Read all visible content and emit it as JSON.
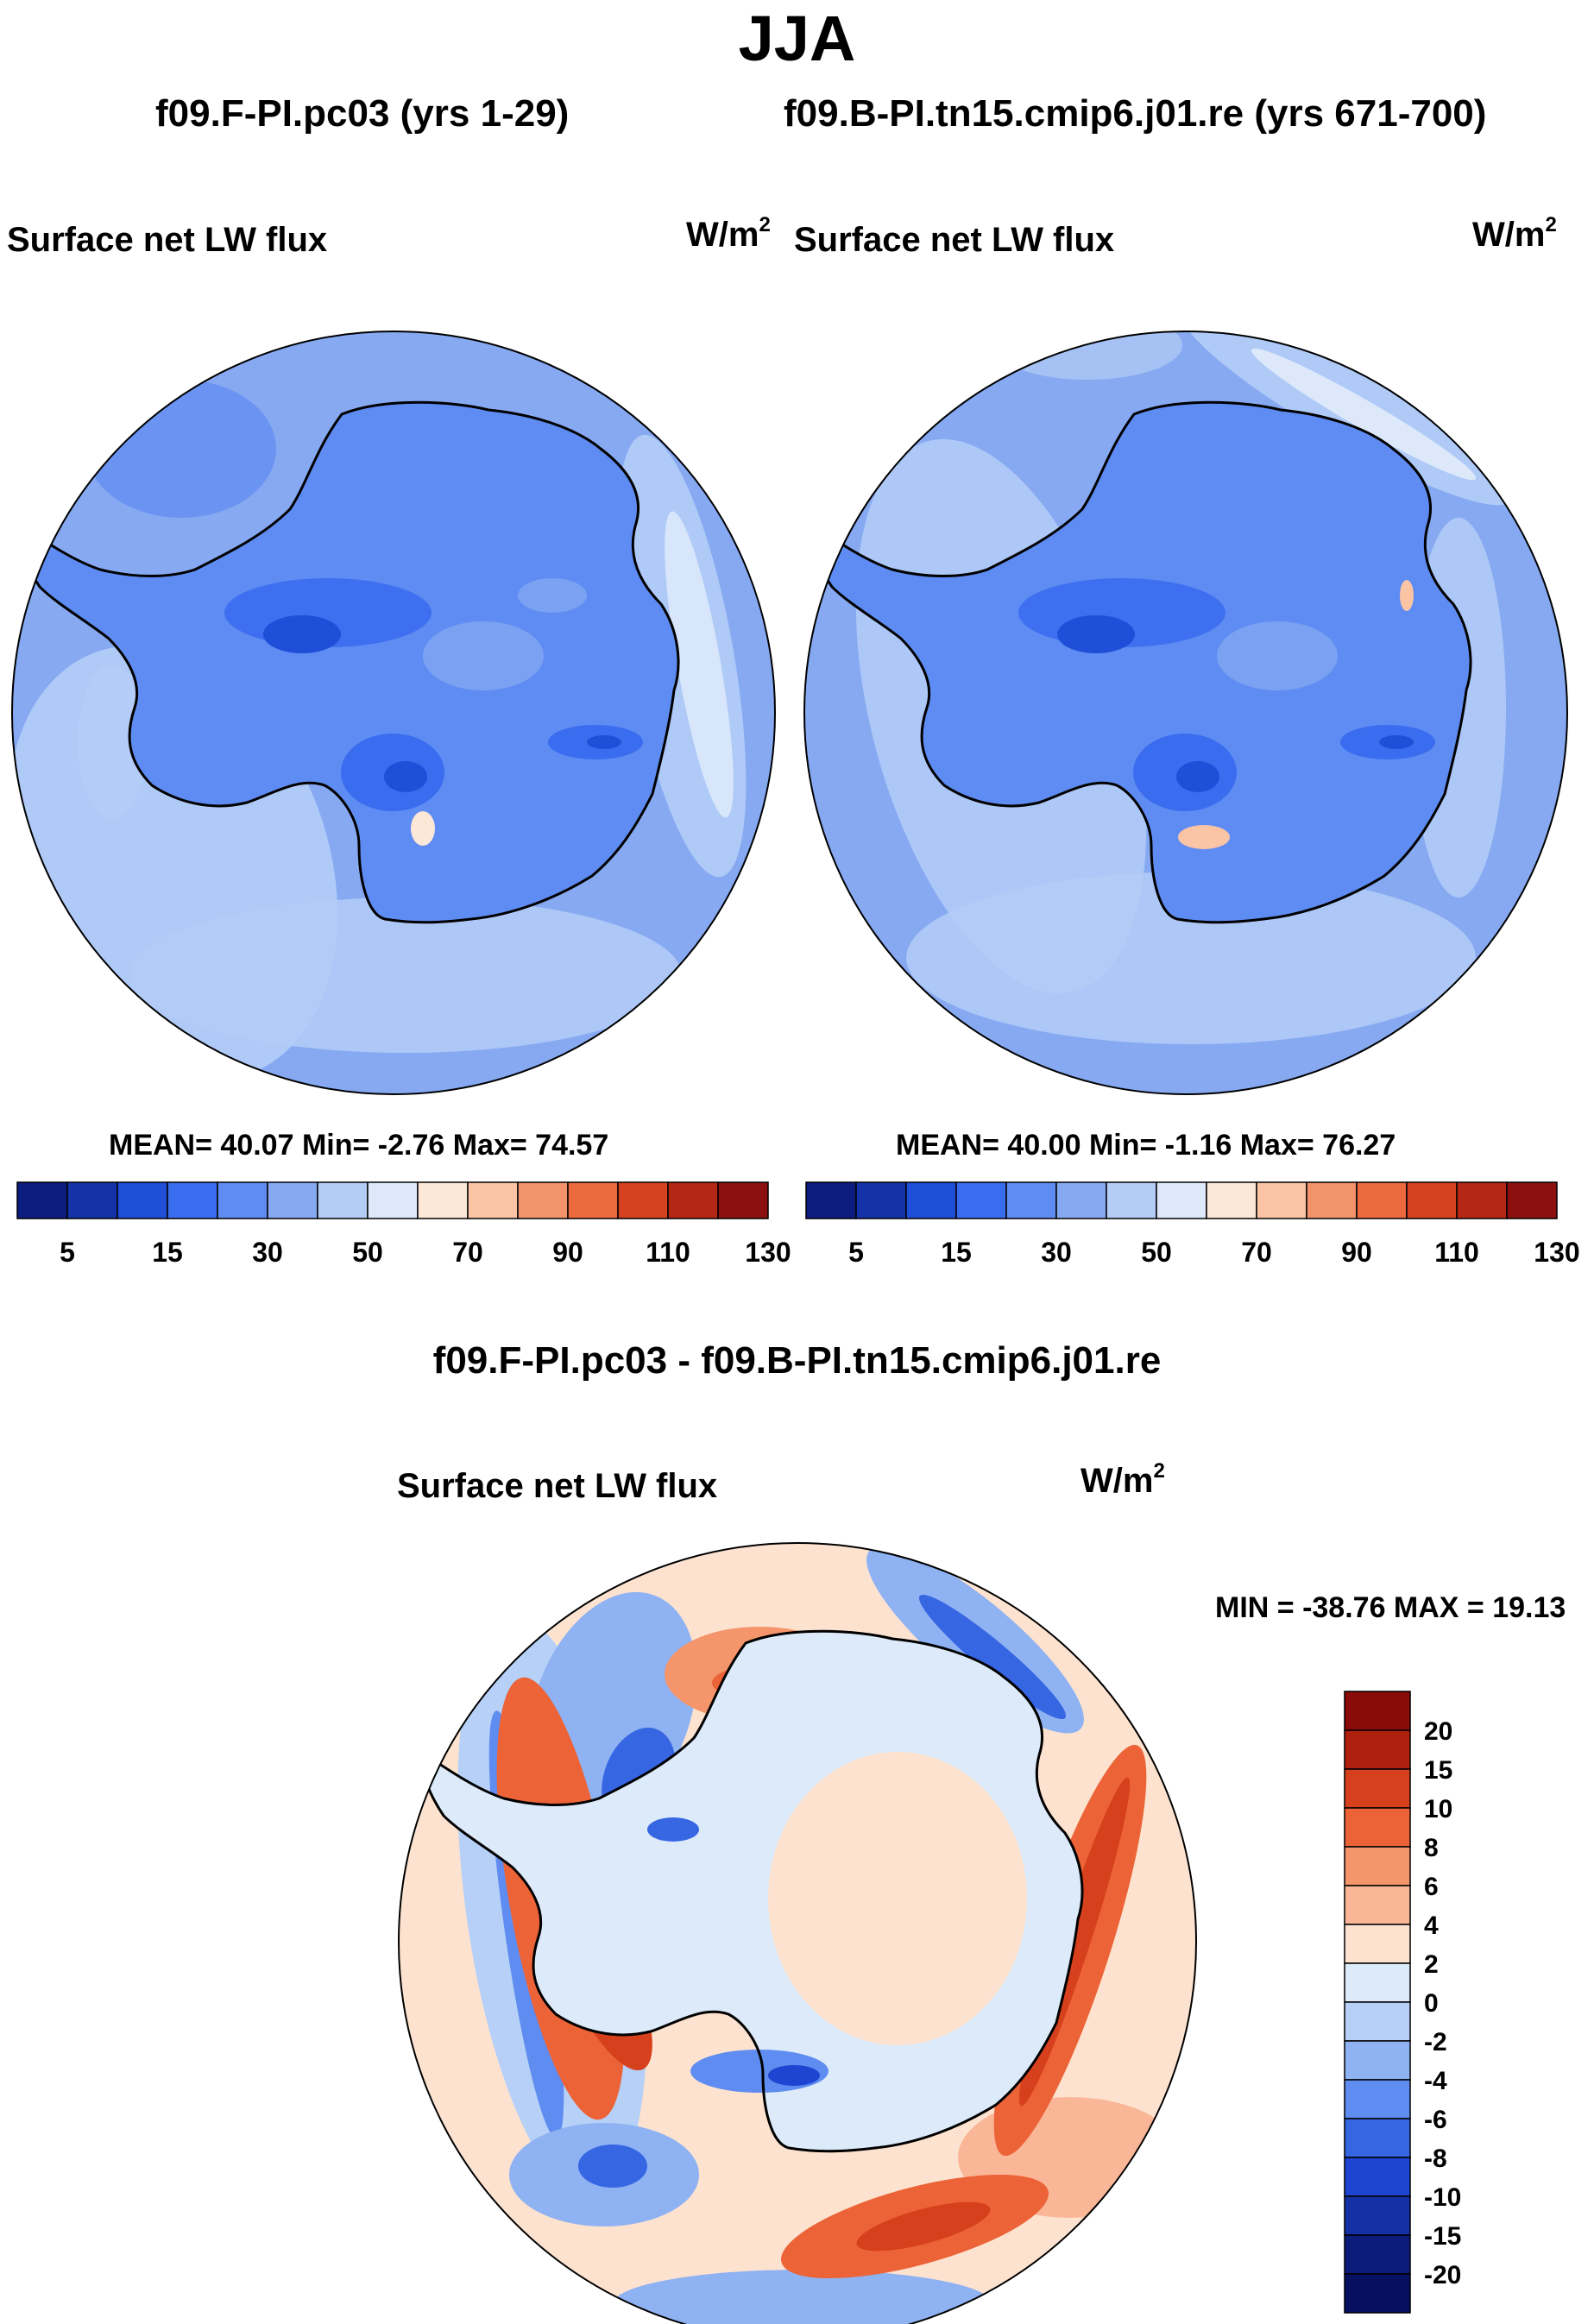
{
  "figure": {
    "title": "JJA",
    "left_panel": {
      "case": "f09.F-PI.pc03 (yrs 1-29)",
      "variable": "Surface net LW flux",
      "units_base": "W/m",
      "units_exp": "2",
      "stats": "MEAN=  40.07  Min=  -2.76  Max=  74.57"
    },
    "right_panel": {
      "case": "f09.B-PI.tn15.cmip6.j01.re (yrs 671-700)",
      "variable": "Surface net LW flux",
      "units_base": "W/m",
      "units_exp": "2",
      "stats": "MEAN=  40.00  Min=  -1.16  Max=  76.27"
    },
    "diff_panel": {
      "title": "f09.F-PI.pc03 - f09.B-PI.tn15.cmip6.j01.re",
      "variable": "Surface net LW flux",
      "units_base": "W/m",
      "units_exp": "2",
      "minmax": "MIN = -38.76 MAX =  19.13"
    }
  },
  "chart_data": [
    {
      "type": "heatmap",
      "projection": "south-polar-stereographic",
      "title": "f09.F-PI.pc03 (yrs 1-29)",
      "variable": "Surface net LW flux",
      "units": "W/m2",
      "season": "JJA",
      "mean": 40.07,
      "min": -2.76,
      "max": 74.57,
      "colorbar": {
        "orientation": "horizontal",
        "tick_labels": [
          "5",
          "15",
          "30",
          "50",
          "70",
          "90",
          "110",
          "130"
        ],
        "colors": [
          "#0d1c7f",
          "#1433a8",
          "#1f4ed8",
          "#3a6cf0",
          "#5f8cf2",
          "#86a9f2",
          "#b4cdf7",
          "#dde9fb",
          "#fde7d6",
          "#fbc4a5",
          "#f3936b",
          "#ec6a3d",
          "#d6411f",
          "#b52715",
          "#8b1010"
        ]
      }
    },
    {
      "type": "heatmap",
      "projection": "south-polar-stereographic",
      "title": "f09.B-PI.tn15.cmip6.j01.re (yrs 671-700)",
      "variable": "Surface net LW flux",
      "units": "W/m2",
      "season": "JJA",
      "mean": 40.0,
      "min": -1.16,
      "max": 76.27,
      "colorbar": {
        "orientation": "horizontal",
        "tick_labels": [
          "5",
          "15",
          "30",
          "50",
          "70",
          "90",
          "110",
          "130"
        ],
        "colors": [
          "#0d1c7f",
          "#1433a8",
          "#1f4ed8",
          "#3a6cf0",
          "#5f8cf2",
          "#86a9f2",
          "#b4cdf7",
          "#dde9fb",
          "#fde7d6",
          "#fbc4a5",
          "#f3936b",
          "#ec6a3d",
          "#d6411f",
          "#b52715",
          "#8b1010"
        ]
      }
    },
    {
      "type": "heatmap",
      "projection": "south-polar-stereographic",
      "title": "f09.F-PI.pc03 - f09.B-PI.tn15.cmip6.j01.re",
      "variable": "Surface net LW flux",
      "units": "W/m2",
      "min": -38.76,
      "max": 19.13,
      "colorbar": {
        "orientation": "vertical",
        "tick_labels": [
          "20",
          "15",
          "10",
          "8",
          "6",
          "4",
          "2",
          "0",
          "-2",
          "-4",
          "-6",
          "-8",
          "-10",
          "-15",
          "-20"
        ],
        "colors": [
          "#8b0a0a",
          "#b0200f",
          "#d6401c",
          "#ec6337",
          "#f4956b",
          "#fab798",
          "#fde3cf",
          "#dceafa",
          "#b6d0f7",
          "#8fb2f3",
          "#5f8cf0",
          "#3766e3",
          "#1d45d2",
          "#1530a5",
          "#0c1c7a",
          "#071060"
        ]
      }
    }
  ]
}
